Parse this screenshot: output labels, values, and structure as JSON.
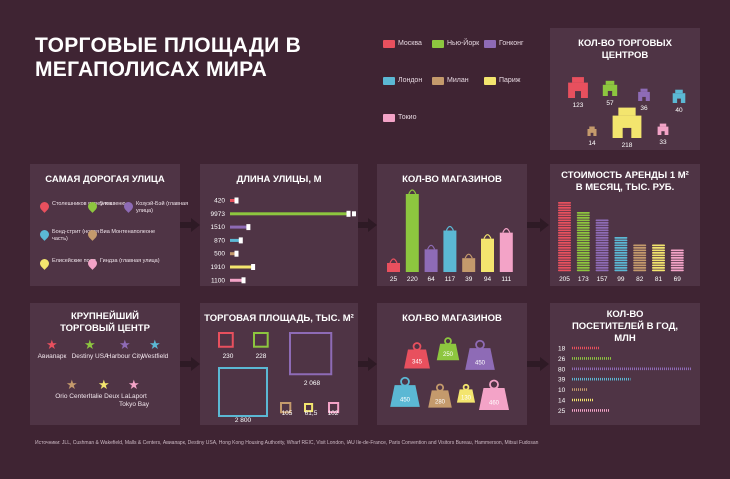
{
  "title": "ТОРГОВЫЕ ПЛОЩАДИ В МЕГАПОЛИСАХ МИРА",
  "colors": {
    "moscow": "#e8505e",
    "newyork": "#8dc63f",
    "hongkong": "#8e6bb6",
    "london": "#5bb8d4",
    "milan": "#c49a6c",
    "paris": "#f3e56e",
    "tokyo": "#f3a3c7",
    "background": "#3f2433",
    "panel": "#4f3445"
  },
  "legend": [
    {
      "key": "moscow",
      "label": "Москва"
    },
    {
      "key": "newyork",
      "label": "Нью-Йорк"
    },
    {
      "key": "hongkong",
      "label": "Гонконг"
    },
    {
      "key": "london",
      "label": "Лондон"
    },
    {
      "key": "milan",
      "label": "Милан"
    },
    {
      "key": "paris",
      "label": "Париж"
    },
    {
      "key": "tokyo",
      "label": "Токио"
    }
  ],
  "panels": {
    "malls_count": {
      "title": "КОЛ-ВО ТОРГОВЫХ ЦЕНТРОВ"
    },
    "street": {
      "title": "САМАЯ ДОРОГАЯ УЛИЦА"
    },
    "street_length": {
      "title": "ДЛИНА УЛИЦЫ, М"
    },
    "shops_street": {
      "title": "КОЛ-ВО МАГАЗИНОВ"
    },
    "rent": {
      "title": "СТОИМОСТЬ АРЕНДЫ 1 М² В МЕСЯЦ, ТЫС. РУБ."
    },
    "largest_mall": {
      "title": "КРУПНЕЙШИЙ ТОРГОВЫЙ ЦЕНТР"
    },
    "mall_area": {
      "title": "ТОРГОВАЯ ПЛОЩАДЬ, ТЫС. М²"
    },
    "shops_mall": {
      "title": "КОЛ-ВО МАГАЗИНОВ"
    },
    "visitors": {
      "title": "КОЛ-ВО ПОСЕТИТЕЛЕЙ В ГОД, МЛН"
    }
  },
  "streets": [
    {
      "key": "moscow",
      "label": "Столешников переулок"
    },
    {
      "key": "newyork",
      "label": "5-я авеню"
    },
    {
      "key": "hongkong",
      "label": "Козуэй-Бэй (главная улица)"
    },
    {
      "key": "london",
      "label": "Бонд-стрит (новая часть)"
    },
    {
      "key": "milan",
      "label": "Виа Монтенаполеоне"
    },
    {
      "key": "paris",
      "label": "Елисейские поля"
    },
    {
      "key": "tokyo",
      "label": "Гиндза (главная улица)"
    }
  ],
  "malls": [
    {
      "key": "moscow",
      "label": "Авиапарк"
    },
    {
      "key": "newyork",
      "label": "Destiny USA"
    },
    {
      "key": "hongkong",
      "label": "Harbour City"
    },
    {
      "key": "london",
      "label": "Westfield"
    },
    {
      "key": "milan",
      "label": "Orio Center"
    },
    {
      "key": "paris",
      "label": "Italie Deux"
    },
    {
      "key": "tokyo",
      "label": "LaLaport Tokyo Bay"
    }
  ],
  "chart_data": [
    {
      "id": "malls_count",
      "type": "pictogram",
      "title": "КОЛ-ВО ТОРГОВЫХ ЦЕНТРОВ",
      "series": [
        {
          "key": "moscow",
          "value": 123,
          "label": "123"
        },
        {
          "key": "newyork",
          "value": 57,
          "label": "57"
        },
        {
          "key": "hongkong",
          "value": 36,
          "label": "36"
        },
        {
          "key": "london",
          "value": 40,
          "label": "40"
        },
        {
          "key": "milan",
          "value": 14,
          "label": "14"
        },
        {
          "key": "paris",
          "value": 218,
          "label": "218"
        },
        {
          "key": "tokyo",
          "value": 33,
          "label": "33"
        }
      ]
    },
    {
      "id": "street_length",
      "type": "bar",
      "orientation": "horizontal",
      "title": "ДЛИНА УЛИЦЫ, М",
      "series": [
        {
          "key": "moscow",
          "value": 420,
          "label": "420"
        },
        {
          "key": "newyork",
          "value": 9973,
          "label": "9973"
        },
        {
          "key": "hongkong",
          "value": 1510,
          "label": "1510"
        },
        {
          "key": "london",
          "value": 870,
          "label": "870"
        },
        {
          "key": "milan",
          "value": 500,
          "label": "500"
        },
        {
          "key": "paris",
          "value": 1910,
          "label": "1910"
        },
        {
          "key": "tokyo",
          "value": 1100,
          "label": "1100"
        }
      ]
    },
    {
      "id": "shops_street",
      "type": "bar",
      "title": "КОЛ-ВО МАГАЗИНОВ",
      "series": [
        {
          "key": "moscow",
          "value": 25,
          "label": "25"
        },
        {
          "key": "newyork",
          "value": 220,
          "label": "220"
        },
        {
          "key": "hongkong",
          "value": 64,
          "label": "64"
        },
        {
          "key": "london",
          "value": 117,
          "label": "117"
        },
        {
          "key": "milan",
          "value": 39,
          "label": "39"
        },
        {
          "key": "paris",
          "value": 94,
          "label": "94"
        },
        {
          "key": "tokyo",
          "value": 111,
          "label": "111"
        }
      ]
    },
    {
      "id": "rent",
      "type": "bar",
      "title": "СТОИМОСТЬ АРЕНДЫ 1 М² В МЕСЯЦ, ТЫС. РУБ.",
      "series": [
        {
          "key": "moscow",
          "value": 205,
          "label": "205"
        },
        {
          "key": "newyork",
          "value": 173,
          "label": "173"
        },
        {
          "key": "hongkong",
          "value": 157,
          "label": "157"
        },
        {
          "key": "london",
          "value": 99,
          "label": "99"
        },
        {
          "key": "milan",
          "value": 82,
          "label": "82"
        },
        {
          "key": "paris",
          "value": 81,
          "label": "81"
        },
        {
          "key": "tokyo",
          "value": 69,
          "label": "69"
        }
      ]
    },
    {
      "id": "mall_area",
      "type": "square",
      "title": "ТОРГОВАЯ ПЛОЩАДЬ, ТЫС. М²",
      "series": [
        {
          "key": "moscow",
          "value": 230,
          "label": "230"
        },
        {
          "key": "newyork",
          "value": 228,
          "label": "228"
        },
        {
          "key": "hongkong",
          "value": 2068,
          "label": "2 068"
        },
        {
          "key": "london",
          "value": 2800,
          "label": "2 800"
        },
        {
          "key": "milan",
          "value": 105,
          "label": "105"
        },
        {
          "key": "paris",
          "value": 61.5,
          "label": "61,5"
        },
        {
          "key": "tokyo",
          "value": 102,
          "label": "102"
        }
      ]
    },
    {
      "id": "shops_mall",
      "type": "pictogram",
      "title": "КОЛ-ВО МАГАЗИНОВ",
      "series": [
        {
          "key": "moscow",
          "value": 345,
          "label": "345"
        },
        {
          "key": "newyork",
          "value": 250,
          "label": "250"
        },
        {
          "key": "hongkong",
          "value": 450,
          "label": "450"
        },
        {
          "key": "london",
          "value": 450,
          "label": "450"
        },
        {
          "key": "milan",
          "value": 280,
          "label": "280"
        },
        {
          "key": "paris",
          "value": 130,
          "label": "130"
        },
        {
          "key": "tokyo",
          "value": 460,
          "label": "460"
        }
      ]
    },
    {
      "id": "visitors",
      "type": "bar",
      "orientation": "horizontal",
      "title": "КОЛ-ВО ПОСЕТИТЕЛЕЙ В ГОД, МЛН",
      "series": [
        {
          "key": "moscow",
          "value": 18,
          "label": "18"
        },
        {
          "key": "newyork",
          "value": 26,
          "label": "26"
        },
        {
          "key": "hongkong",
          "value": 80,
          "label": "80"
        },
        {
          "key": "london",
          "value": 39,
          "label": "39"
        },
        {
          "key": "milan",
          "value": 10,
          "label": "10"
        },
        {
          "key": "paris",
          "value": 14,
          "label": "14"
        },
        {
          "key": "tokyo",
          "value": 25,
          "label": "25"
        }
      ]
    }
  ],
  "sources": "Источники: JLL, Cushman & Wakefield, Malls & Centers, Авиапарк, Destiny USA, Hong Kong Housing Authority, Wharf REIC, Visit London, IAU Ile-de-France, Paris Convention and Visitors Bureau, Hammerson, Mitsui Fudosan"
}
